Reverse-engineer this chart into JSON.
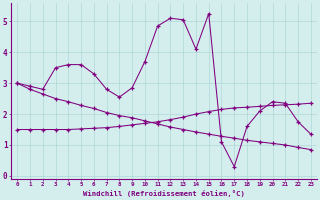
{
  "x": [
    0,
    1,
    2,
    3,
    4,
    5,
    6,
    7,
    8,
    9,
    10,
    11,
    12,
    13,
    14,
    15,
    16,
    17,
    18,
    19,
    20,
    21,
    22,
    23
  ],
  "series1": [
    3.0,
    2.9,
    2.8,
    3.5,
    3.6,
    3.6,
    3.3,
    2.8,
    2.55,
    2.85,
    3.7,
    4.85,
    5.1,
    5.05,
    4.1,
    5.25,
    1.1,
    0.3,
    1.6,
    2.1,
    2.4,
    2.35,
    1.75,
    1.35
  ],
  "series2_line": [
    3.0,
    2.8,
    2.65,
    2.5,
    2.4,
    2.28,
    2.18,
    2.05,
    1.95,
    1.88,
    1.78,
    1.68,
    1.58,
    1.5,
    1.42,
    1.35,
    1.28,
    1.22,
    1.15,
    1.1,
    1.05,
    1.0,
    0.92,
    0.85
  ],
  "series3_line": [
    1.5,
    1.5,
    1.5,
    1.5,
    1.5,
    1.52,
    1.54,
    1.56,
    1.6,
    1.65,
    1.7,
    1.75,
    1.82,
    1.9,
    2.0,
    2.08,
    2.15,
    2.2,
    2.22,
    2.25,
    2.28,
    2.3,
    2.32,
    2.35
  ],
  "color": "#800080",
  "bg_color": "#d4eeed",
  "grid_color": "#b0d8d8",
  "xlabel": "Windchill (Refroidissement éolien,°C)",
  "ylim": [
    -0.1,
    5.6
  ],
  "xlim": [
    -0.5,
    23.5
  ],
  "yticks": [
    0,
    1,
    2,
    3,
    4,
    5
  ],
  "xticks": [
    0,
    1,
    2,
    3,
    4,
    5,
    6,
    7,
    8,
    9,
    10,
    11,
    12,
    13,
    14,
    15,
    16,
    17,
    18,
    19,
    20,
    21,
    22,
    23
  ]
}
